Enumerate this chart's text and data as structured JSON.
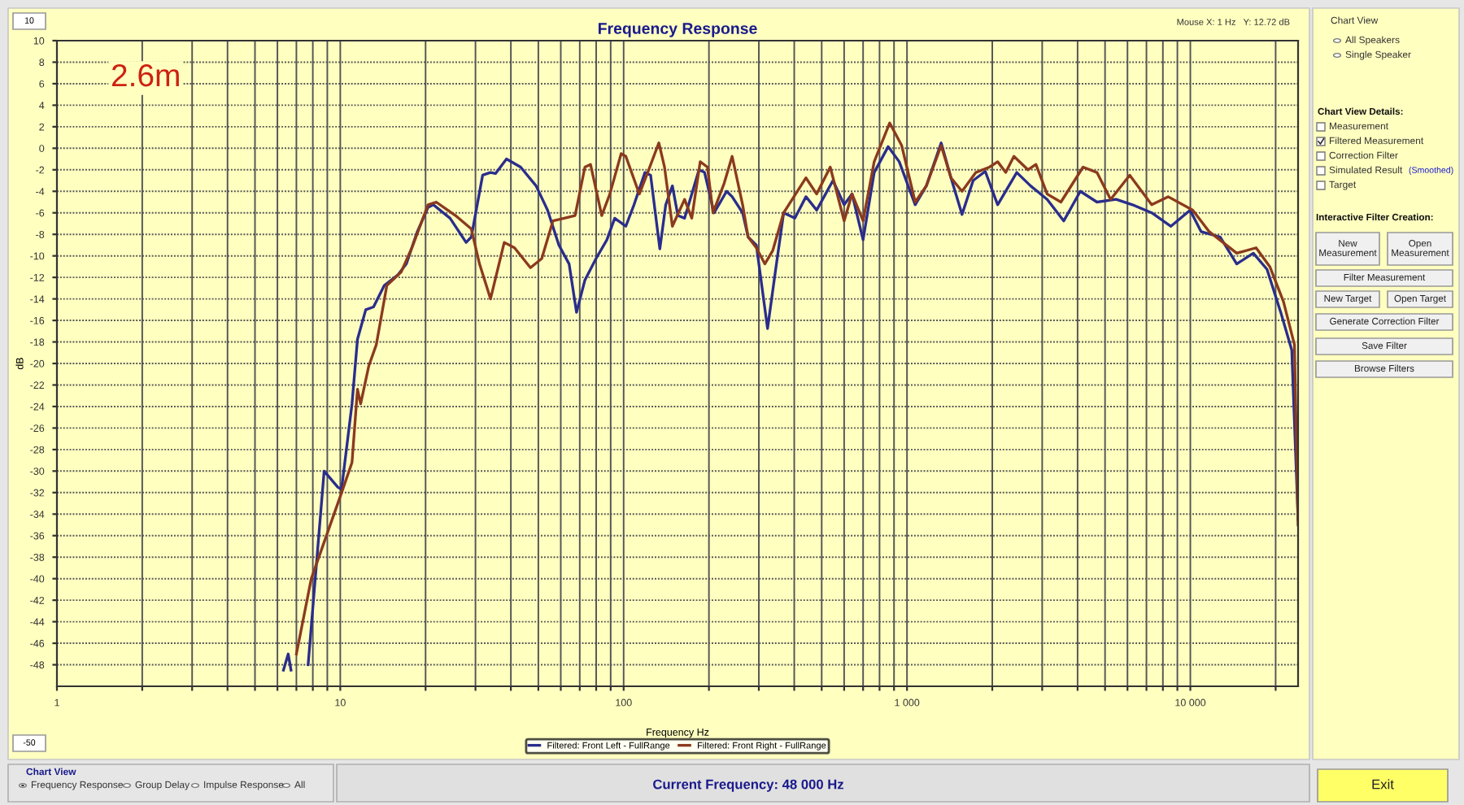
{
  "chart_data": {
    "type": "line",
    "title": "Frequency Response",
    "xlabel": "Frequency Hz",
    "ylabel": "dB",
    "log": "x",
    "xlim": [
      1,
      24000
    ],
    "ylim": [
      -50,
      10
    ],
    "xticks": [
      {
        "value": 1,
        "label": "1"
      },
      {
        "value": 2,
        "label": null
      },
      {
        "value": 3,
        "label": null
      },
      {
        "value": 4,
        "label": null
      },
      {
        "value": 5,
        "label": null
      },
      {
        "value": 6,
        "label": null
      },
      {
        "value": 7,
        "label": null
      },
      {
        "value": 8,
        "label": null
      },
      {
        "value": 9,
        "label": null
      },
      {
        "value": 10,
        "label": "10"
      },
      {
        "value": 20,
        "label": null
      },
      {
        "value": 30,
        "label": null
      },
      {
        "value": 40,
        "label": null
      },
      {
        "value": 50,
        "label": null
      },
      {
        "value": 60,
        "label": null
      },
      {
        "value": 70,
        "label": null
      },
      {
        "value": 80,
        "label": null
      },
      {
        "value": 90,
        "label": null
      },
      {
        "value": 100,
        "label": "100"
      },
      {
        "value": 200,
        "label": null
      },
      {
        "value": 300,
        "label": null
      },
      {
        "value": 400,
        "label": null
      },
      {
        "value": 500,
        "label": null
      },
      {
        "value": 600,
        "label": null
      },
      {
        "value": 700,
        "label": null
      },
      {
        "value": 800,
        "label": null
      },
      {
        "value": 900,
        "label": null
      },
      {
        "value": 1000,
        "label": "1 000"
      },
      {
        "value": 2000,
        "label": null
      },
      {
        "value": 3000,
        "label": null
      },
      {
        "value": 4000,
        "label": null
      },
      {
        "value": 5000,
        "label": null
      },
      {
        "value": 6000,
        "label": null
      },
      {
        "value": 7000,
        "label": null
      },
      {
        "value": 8000,
        "label": null
      },
      {
        "value": 9000,
        "label": null
      },
      {
        "value": 10000,
        "label": "10 000"
      },
      {
        "value": 20000,
        "label": null
      }
    ],
    "yticks": [
      -48,
      -46,
      -44,
      -42,
      -40,
      -38,
      -36,
      -34,
      -32,
      -30,
      -28,
      -26,
      -24,
      -22,
      -20,
      -18,
      -16,
      -14,
      -12,
      -10,
      -8,
      -6,
      -4,
      -2,
      0,
      2,
      4,
      6,
      8,
      10
    ],
    "grid": true,
    "legend": "bottom",
    "marker": "none",
    "line_style": "solid",
    "series": [
      {
        "name": "Filtered: Front Left - FullRange",
        "color": "#2a2d8c",
        "x": [
          6.3,
          6.55,
          6.7,
          7.0,
          7.7,
          8.77,
          9.8,
          10.1,
          11.0,
          11.5,
          12.3,
          13.1,
          14.3,
          16.0,
          17.1,
          18.7,
          20.4,
          21.3,
          24.4,
          27.8,
          29.0,
          31.8,
          33.9,
          35.3,
          38.6,
          43.3,
          49.1,
          53.9,
          59.1,
          64.2,
          68.2,
          73.0,
          79.9,
          87.3,
          93.0,
          101.8,
          108.8,
          118.9,
          124.5,
          134.2,
          140.8,
          148.6,
          155.4,
          164.1,
          184.5,
          193.0,
          208.5,
          230.9,
          241.5,
          263,
          275,
          294,
          322,
          344,
          367,
          402,
          440,
          480,
          548,
          600,
          640,
          700,
          766,
          858,
          939,
          1069,
          1170,
          1320,
          1430,
          1564,
          1712,
          1889,
          2089,
          2440,
          2731,
          3124,
          3575,
          4090,
          4681,
          5470,
          6248,
          7305,
          8540,
          9980,
          10920,
          12750,
          14580,
          16680,
          18650,
          20850,
          22800,
          24000
        ],
        "values": [
          -48.5,
          -47,
          -48.5,
          null,
          -48,
          -30,
          -31.5,
          -31.7,
          -23.75,
          -17.75,
          -15,
          -14.75,
          -12.75,
          -11.75,
          -10.75,
          -7.75,
          -5.5,
          -5.25,
          -6.5,
          -8.75,
          -8.25,
          -2.5,
          -2.25,
          -2.35,
          -1.0,
          -1.75,
          -3.5,
          -5.75,
          -9.0,
          -10.75,
          -15.25,
          -12.25,
          -10.25,
          -8.5,
          -6.5,
          -7.25,
          -5.25,
          -2.25,
          -2.5,
          -9.35,
          -5.25,
          -3.5,
          -6.25,
          -6.5,
          -2.0,
          -2.25,
          -6.0,
          -4.0,
          -4.5,
          -6,
          -8.25,
          -9.0,
          -16.75,
          -11.25,
          -6.0,
          -6.5,
          -4.5,
          -5.75,
          -3.0,
          -5.25,
          -4.25,
          -8.5,
          -2.25,
          0.15,
          -1.25,
          -5.25,
          -3.5,
          0.5,
          -2.75,
          -6.15,
          -3.0,
          -2.15,
          -5.25,
          -2.25,
          -3.5,
          -4.75,
          -6.75,
          -4.0,
          -5.0,
          -4.75,
          -5.25,
          -6.0,
          -7.25,
          -5.75,
          -7.75,
          -8.25,
          -10.75,
          -9.75,
          -11.25,
          -15.25,
          -18.75,
          -34.5
        ]
      },
      {
        "name": "Filtered: Front Right - FullRange",
        "color": "#8b3a1e",
        "x": [
          7.0,
          7.9,
          10.2,
          11.0,
          11.5,
          11.8,
          12.6,
          13.4,
          14.6,
          16.4,
          17.9,
          20.4,
          21.8,
          25.5,
          29.0,
          31.0,
          33.9,
          37.9,
          41.2,
          46.9,
          51.4,
          56.3,
          61.7,
          67.4,
          73.0,
          76.4,
          83.7,
          89.4,
          98.0,
          101.8,
          113.6,
          121.6,
          133.1,
          139.4,
          148.6,
          164.1,
          174.0,
          186.3,
          197.6,
          206.7,
          226.4,
          241.5,
          263,
          275,
          294,
          315,
          336,
          367,
          440,
          480,
          536,
          600,
          640,
          700,
          766,
          869,
          958,
          1069,
          1170,
          1320,
          1430,
          1564,
          1750,
          1955,
          2089,
          2231,
          2384,
          2672,
          2851,
          3124,
          3493,
          4181,
          4681,
          5232,
          6110,
          7305,
          8350,
          10200,
          11660,
          14580,
          17060,
          19080,
          21310,
          23300,
          24000
        ],
        "values": [
          -47,
          -40,
          -31.7,
          -29.2,
          -22.4,
          -23.75,
          -20.25,
          -18.25,
          -12.75,
          -11.5,
          -9.25,
          -5.25,
          -5.0,
          -6.25,
          -7.5,
          -10.75,
          -14.0,
          -8.75,
          -9.25,
          -11.1,
          -10.25,
          -6.75,
          -6.5,
          -6.25,
          -1.75,
          -1.5,
          -6.25,
          -4.25,
          -0.5,
          -0.75,
          -4.25,
          -2.25,
          0.5,
          -1.75,
          -7.25,
          -4.75,
          -6.5,
          -1.25,
          -1.75,
          -6.0,
          -3.25,
          -0.75,
          -5.25,
          -8.25,
          -9.25,
          -10.75,
          -9.5,
          -6.0,
          -2.75,
          -4.25,
          -1.75,
          -6.75,
          -4.25,
          -6.75,
          -1.25,
          2.35,
          0.25,
          -5.0,
          -3.5,
          0.25,
          -2.75,
          -4.0,
          -2.25,
          -1.75,
          -1.25,
          -2.25,
          -0.75,
          -2.0,
          -1.5,
          -4.25,
          -5.0,
          -1.75,
          -2.25,
          -4.75,
          -2.5,
          -5.25,
          -4.5,
          -5.75,
          -7.75,
          -9.75,
          -9.25,
          -11.0,
          -14.25,
          -18.25,
          -35
        ]
      }
    ],
    "annotations": [
      "2.6m",
      "Mouse X: 1 Hz   Y: 12.72 dB",
      "10",
      "-50",
      "Chart View",
      "All Speakers",
      "Single Speaker",
      "Chart View Details:",
      "Measurement",
      "Filtered Measurement",
      "Correction Filter",
      "Simulated Result",
      "(Smoothed)",
      "Target",
      "Interactive Filter Creation:",
      "New Measurement",
      "Open Measurement",
      "Filter Measurement",
      "New Target",
      "Open Target",
      "Generate Correction Filter",
      "Save Filter",
      "Browse Filters",
      "Chart View",
      "Frequency Response",
      "Group Delay",
      "Impulse Response",
      "All",
      "Current Frequency: 48 000 Hz",
      "Exit"
    ]
  }
}
